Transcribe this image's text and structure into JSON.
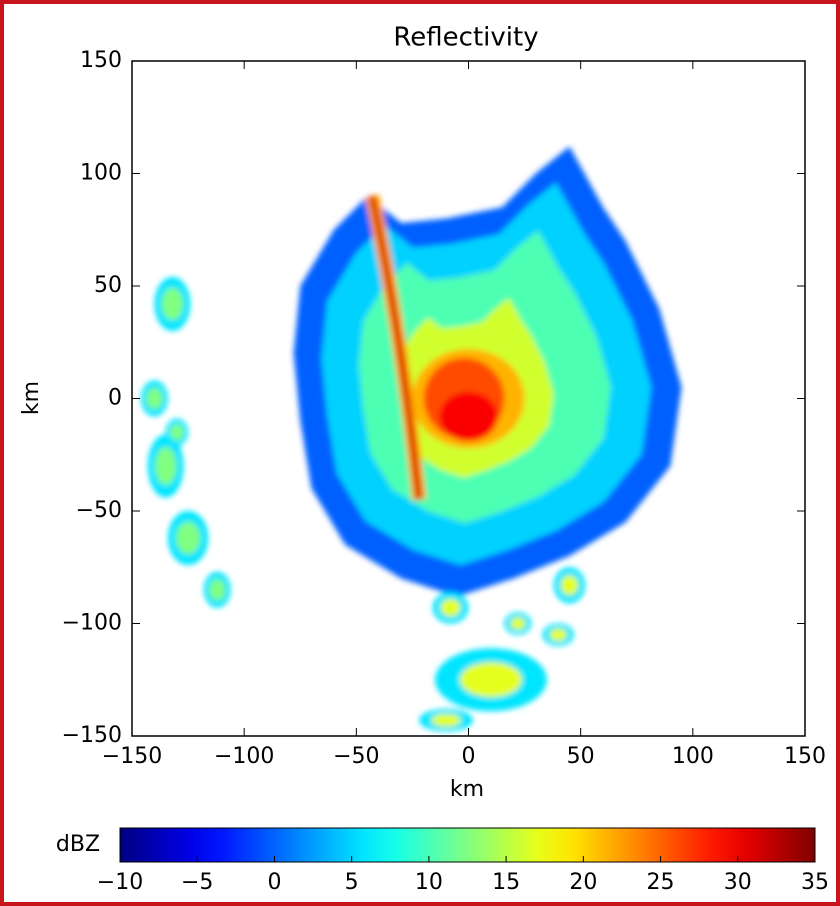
{
  "chart_data": {
    "type": "radar_ppi",
    "title": "Reflectivity",
    "xlabel": "km",
    "ylabel": "km",
    "xlim": [
      -150,
      150
    ],
    "ylim": [
      -150,
      150
    ],
    "xticks": [
      {
        "value": -150,
        "label": "−150"
      },
      {
        "value": -100,
        "label": "−100"
      },
      {
        "value": -50,
        "label": "−50"
      },
      0,
      50,
      100,
      150
    ],
    "yticks": [
      {
        "value": -150,
        "label": "−150"
      },
      {
        "value": -100,
        "label": "−100"
      },
      {
        "value": -50,
        "label": "−50"
      },
      0,
      50,
      100,
      150
    ],
    "colorbar": {
      "label": "dBZ",
      "colormap": "jet",
      "lim": [
        -10,
        35
      ],
      "ticks": [
        {
          "value": -10,
          "label": "−10"
        },
        {
          "value": -5,
          "label": "−5"
        },
        0,
        5,
        10,
        15,
        20,
        25,
        30,
        35
      ]
    }
  }
}
